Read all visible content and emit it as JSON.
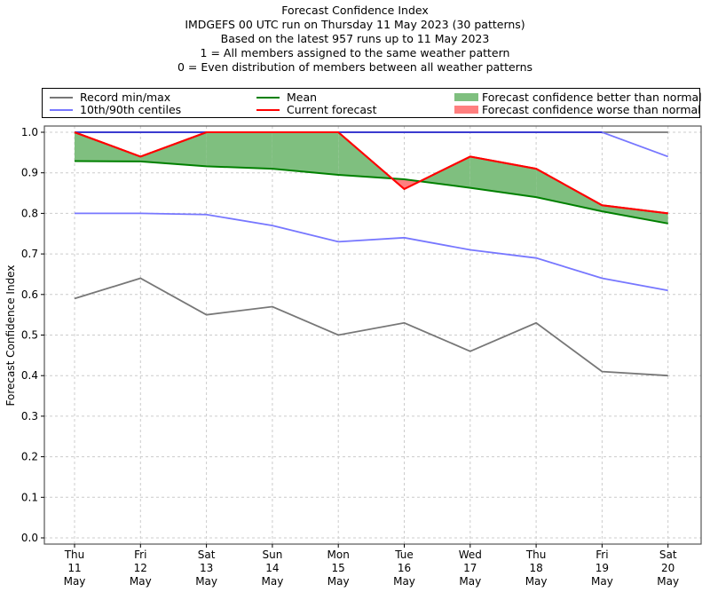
{
  "chart_data": {
    "type": "line",
    "title_lines": [
      "Forecast Confidence Index",
      "IMDGEFS 00 UTC run on Thursday 11 May 2023 (30 patterns)",
      "Based on the latest 957 runs up to 11 May 2023",
      "1 = All members assigned to the same weather pattern",
      "0 = Even distribution of members between all weather patterns"
    ],
    "xlabel": "",
    "ylabel": "Forecast Confidence Index",
    "ylim": [
      0.0,
      1.0
    ],
    "yticks": [
      "0.0",
      "0.1",
      "0.2",
      "0.3",
      "0.4",
      "0.5",
      "0.6",
      "0.7",
      "0.8",
      "0.9",
      "1.0"
    ],
    "ytick_values": [
      0.0,
      0.1,
      0.2,
      0.3,
      0.4,
      0.5,
      0.6,
      0.7,
      0.8,
      0.9,
      1.0
    ],
    "grid": true,
    "legend_position": "top",
    "categories": [
      {
        "day": "Thu",
        "date": "11",
        "month": "May"
      },
      {
        "day": "Fri",
        "date": "12",
        "month": "May"
      },
      {
        "day": "Sat",
        "date": "13",
        "month": "May"
      },
      {
        "day": "Sun",
        "date": "14",
        "month": "May"
      },
      {
        "day": "Mon",
        "date": "15",
        "month": "May"
      },
      {
        "day": "Tue",
        "date": "16",
        "month": "May"
      },
      {
        "day": "Wed",
        "date": "17",
        "month": "May"
      },
      {
        "day": "Thu",
        "date": "18",
        "month": "May"
      },
      {
        "day": "Fri",
        "date": "19",
        "month": "May"
      },
      {
        "day": "Sat",
        "date": "20",
        "month": "May"
      }
    ],
    "series": [
      {
        "name": "Record min",
        "legend": "Record min/max",
        "color": "#777777",
        "values": [
          0.59,
          0.64,
          0.55,
          0.57,
          0.5,
          0.53,
          0.46,
          0.53,
          0.41,
          0.4
        ]
      },
      {
        "name": "Record max",
        "legend": "Record min/max",
        "color": "#777777",
        "values": [
          1.0,
          1.0,
          1.0,
          1.0,
          1.0,
          1.0,
          1.0,
          1.0,
          1.0,
          1.0
        ]
      },
      {
        "name": "10th centile",
        "legend": "10th/90th centiles",
        "color": "#7777ff",
        "values": [
          0.8,
          0.8,
          0.797,
          0.77,
          0.73,
          0.74,
          0.71,
          0.69,
          0.64,
          0.61
        ]
      },
      {
        "name": "90th centile",
        "legend": "10th/90th centiles",
        "color": "#7777ff",
        "values": [
          1.0,
          1.0,
          1.0,
          1.0,
          1.0,
          1.0,
          1.0,
          1.0,
          1.0,
          0.94
        ]
      },
      {
        "name": "Mean",
        "legend": "Mean",
        "color": "#008000",
        "values": [
          0.929,
          0.928,
          0.916,
          0.91,
          0.895,
          0.884,
          0.863,
          0.84,
          0.805,
          0.775
        ]
      },
      {
        "name": "Current forecast",
        "legend": "Current forecast",
        "color": "#ff0000",
        "values": [
          1.0,
          0.94,
          1.0,
          1.0,
          1.0,
          0.86,
          0.94,
          0.91,
          0.82,
          0.8
        ]
      }
    ],
    "fills": [
      {
        "name": "Forecast confidence better than normal",
        "color": "#7fbf7f",
        "condition": "current >= mean"
      },
      {
        "name": "Forecast confidence worse than normal",
        "color": "#ff7f7f",
        "condition": "current < mean"
      }
    ]
  },
  "legend": {
    "items": [
      {
        "label": "Record min/max",
        "color": "#777777",
        "kind": "line"
      },
      {
        "label": "10th/90th centiles",
        "color": "#7777ff",
        "kind": "line"
      },
      {
        "label": "Mean",
        "color": "#008000",
        "kind": "line"
      },
      {
        "label": "Current forecast",
        "color": "#ff0000",
        "kind": "line"
      },
      {
        "label": "Forecast confidence better than normal",
        "color": "#7fbf7f",
        "kind": "patch"
      },
      {
        "label": "Forecast confidence worse than normal",
        "color": "#ff7f7f",
        "kind": "patch"
      }
    ]
  }
}
